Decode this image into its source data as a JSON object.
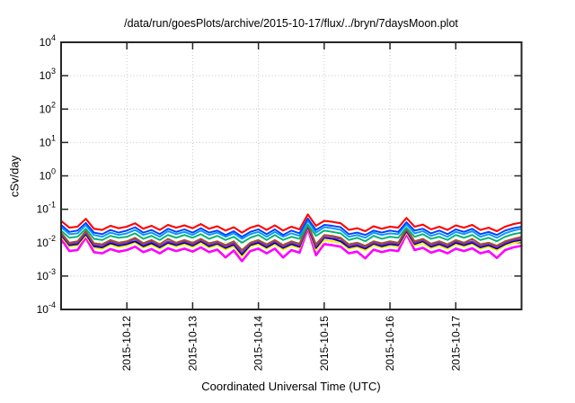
{
  "chart_data": {
    "type": "line",
    "title": "/data/run/goesPlots/archive/2015-10-17/flux/../bryn/7daysMoon.plot",
    "xlabel": "Coordinated Universal Time (UTC)",
    "ylabel": "cSv/day",
    "y_scale": "log10",
    "ylim": [
      0.0001,
      10000
    ],
    "ylim_exponents": [
      -4,
      4
    ],
    "y_tick_exponents": [
      4,
      3,
      2,
      1,
      0,
      -1,
      -2,
      -3,
      -4
    ],
    "x_range_days": [
      0,
      7
    ],
    "x_ticks": [
      {
        "label": "2015-10-12",
        "day": 1
      },
      {
        "label": "2015-10-13",
        "day": 2
      },
      {
        "label": "2015-10-14",
        "day": 3
      },
      {
        "label": "2015-10-15",
        "day": 4
      },
      {
        "label": "2015-10-16",
        "day": 5
      },
      {
        "label": "2015-10-17",
        "day": 6
      }
    ],
    "grid": {
      "style": "dotted",
      "color": "#c6c6c6"
    },
    "legend_position": "none",
    "border_color": "#262626",
    "x_days": [
      0,
      0.125,
      0.25,
      0.375,
      0.5,
      0.625,
      0.75,
      0.875,
      1,
      1.125,
      1.25,
      1.375,
      1.5,
      1.625,
      1.75,
      1.875,
      2,
      2.125,
      2.25,
      2.375,
      2.5,
      2.625,
      2.75,
      2.875,
      3,
      3.125,
      3.25,
      3.375,
      3.5,
      3.625,
      3.75,
      3.875,
      4,
      4.125,
      4.25,
      4.375,
      4.5,
      4.625,
      4.75,
      4.875,
      5,
      5.125,
      5.25,
      5.375,
      5.5,
      5.625,
      5.75,
      5.875,
      6,
      6.125,
      6.25,
      6.375,
      6.5,
      6.625,
      6.75,
      6.875,
      7
    ],
    "series": [
      {
        "name": "red",
        "color": "#ff0000",
        "width": 2.1,
        "values": [
          0.045,
          0.028,
          0.03,
          0.052,
          0.026,
          0.024,
          0.032,
          0.027,
          0.03,
          0.038,
          0.026,
          0.032,
          0.024,
          0.034,
          0.028,
          0.033,
          0.027,
          0.036,
          0.026,
          0.031,
          0.023,
          0.029,
          0.02,
          0.028,
          0.033,
          0.024,
          0.033,
          0.023,
          0.03,
          0.025,
          0.07,
          0.032,
          0.045,
          0.042,
          0.038,
          0.024,
          0.027,
          0.022,
          0.031,
          0.026,
          0.03,
          0.028,
          0.055,
          0.03,
          0.035,
          0.025,
          0.03,
          0.024,
          0.033,
          0.028,
          0.034,
          0.024,
          0.028,
          0.022,
          0.03,
          0.036,
          0.04
        ]
      },
      {
        "name": "blue",
        "color": "#0040ff",
        "width": 1.9,
        "values": [
          0.034,
          0.021,
          0.023,
          0.039,
          0.02,
          0.018,
          0.024,
          0.02,
          0.023,
          0.029,
          0.02,
          0.024,
          0.018,
          0.026,
          0.021,
          0.025,
          0.02,
          0.027,
          0.02,
          0.023,
          0.017,
          0.022,
          0.015,
          0.021,
          0.025,
          0.018,
          0.025,
          0.017,
          0.023,
          0.019,
          0.053,
          0.024,
          0.034,
          0.032,
          0.029,
          0.018,
          0.02,
          0.017,
          0.023,
          0.02,
          0.023,
          0.021,
          0.041,
          0.023,
          0.026,
          0.019,
          0.023,
          0.018,
          0.025,
          0.021,
          0.026,
          0.018,
          0.021,
          0.017,
          0.023,
          0.027,
          0.03
        ]
      },
      {
        "name": "light-blue",
        "color": "#0099ff",
        "width": 1.9,
        "values": [
          0.029,
          0.018,
          0.019,
          0.033,
          0.017,
          0.015,
          0.02,
          0.017,
          0.019,
          0.024,
          0.017,
          0.02,
          0.015,
          0.022,
          0.018,
          0.021,
          0.017,
          0.023,
          0.017,
          0.02,
          0.015,
          0.019,
          0.013,
          0.018,
          0.021,
          0.015,
          0.021,
          0.015,
          0.019,
          0.016,
          0.045,
          0.02,
          0.029,
          0.027,
          0.024,
          0.015,
          0.017,
          0.014,
          0.02,
          0.017,
          0.019,
          0.018,
          0.035,
          0.019,
          0.022,
          0.016,
          0.019,
          0.015,
          0.021,
          0.018,
          0.022,
          0.015,
          0.018,
          0.014,
          0.019,
          0.023,
          0.026
        ]
      },
      {
        "name": "sea-green",
        "color": "#00b273",
        "width": 1.9,
        "values": [
          0.023,
          0.014,
          0.015,
          0.026,
          0.013,
          0.012,
          0.016,
          0.014,
          0.015,
          0.019,
          0.013,
          0.016,
          0.012,
          0.017,
          0.014,
          0.017,
          0.014,
          0.018,
          0.013,
          0.016,
          0.012,
          0.015,
          0.01,
          0.014,
          0.017,
          0.012,
          0.017,
          0.012,
          0.015,
          0.013,
          0.035,
          0.016,
          0.023,
          0.021,
          0.019,
          0.012,
          0.014,
          0.011,
          0.016,
          0.013,
          0.015,
          0.014,
          0.028,
          0.015,
          0.018,
          0.013,
          0.015,
          0.012,
          0.017,
          0.014,
          0.017,
          0.012,
          0.014,
          0.011,
          0.015,
          0.018,
          0.02
        ]
      },
      {
        "name": "brown",
        "color": "#a0522d",
        "width": 1.9,
        "values": [
          0.02,
          0.01,
          0.011,
          0.022,
          0.0096,
          0.0089,
          0.012,
          0.01,
          0.011,
          0.014,
          0.0096,
          0.012,
          0.0089,
          0.013,
          0.01,
          0.012,
          0.01,
          0.013,
          0.0096,
          0.011,
          0.0085,
          0.011,
          0.006,
          0.01,
          0.012,
          0.0089,
          0.012,
          0.0085,
          0.011,
          0.0093,
          0.035,
          0.009,
          0.017,
          0.016,
          0.014,
          0.0089,
          0.01,
          0.0081,
          0.011,
          0.0096,
          0.011,
          0.01,
          0.026,
          0.011,
          0.013,
          0.0093,
          0.011,
          0.0089,
          0.012,
          0.01,
          0.013,
          0.0089,
          0.01,
          0.0081,
          0.011,
          0.013,
          0.015
        ]
      },
      {
        "name": "purple",
        "color": "#7d2fbd",
        "width": 1.9,
        "values": [
          0.018,
          0.0092,
          0.0099,
          0.02,
          0.0086,
          0.0079,
          0.011,
          0.0089,
          0.0099,
          0.013,
          0.0086,
          0.011,
          0.0079,
          0.011,
          0.0092,
          0.011,
          0.0089,
          0.012,
          0.0086,
          0.01,
          0.0076,
          0.0096,
          0.005,
          0.0092,
          0.011,
          0.0079,
          0.011,
          0.0076,
          0.0099,
          0.0083,
          0.032,
          0.0078,
          0.015,
          0.014,
          0.013,
          0.0079,
          0.0089,
          0.0073,
          0.01,
          0.0086,
          0.0099,
          0.0092,
          0.024,
          0.0099,
          0.012,
          0.0083,
          0.0099,
          0.0079,
          0.011,
          0.0092,
          0.011,
          0.0079,
          0.0092,
          0.0073,
          0.0099,
          0.012,
          0.013
        ]
      },
      {
        "name": "navy",
        "color": "#0000a0",
        "width": 1.9,
        "values": [
          0.017,
          0.0084,
          0.009,
          0.018,
          0.0078,
          0.0072,
          0.0096,
          0.0081,
          0.009,
          0.011,
          0.0078,
          0.0096,
          0.0072,
          0.01,
          0.0084,
          0.0099,
          0.0081,
          0.011,
          0.0078,
          0.0093,
          0.0069,
          0.0087,
          0.0044,
          0.0084,
          0.0099,
          0.0072,
          0.0099,
          0.0069,
          0.009,
          0.0075,
          0.03,
          0.0069,
          0.014,
          0.013,
          0.011,
          0.0072,
          0.0081,
          0.0066,
          0.0093,
          0.0078,
          0.009,
          0.0084,
          0.022,
          0.009,
          0.011,
          0.0075,
          0.009,
          0.0072,
          0.0099,
          0.0084,
          0.01,
          0.0072,
          0.0084,
          0.0066,
          0.009,
          0.011,
          0.012
        ]
      },
      {
        "name": "yellow",
        "color": "#ffee00",
        "width": 1.9,
        "values": [
          0.015,
          0.0076,
          0.0081,
          0.016,
          0.007,
          0.0065,
          0.0086,
          0.0073,
          0.0081,
          0.01,
          0.007,
          0.0086,
          0.0065,
          0.0092,
          0.0076,
          0.0089,
          0.0073,
          0.0097,
          0.007,
          0.0084,
          0.0062,
          0.0078,
          0.0038,
          0.0076,
          0.0089,
          0.0065,
          0.0089,
          0.0062,
          0.0081,
          0.0068,
          0.028,
          0.006,
          0.012,
          0.011,
          0.01,
          0.0065,
          0.0073,
          0.0059,
          0.0084,
          0.007,
          0.0081,
          0.0076,
          0.02,
          0.0081,
          0.0095,
          0.0068,
          0.0081,
          0.0065,
          0.0089,
          0.0076,
          0.0092,
          0.0065,
          0.0076,
          0.0059,
          0.0081,
          0.0097,
          0.011
        ]
      },
      {
        "name": "magenta",
        "color": "#ff00ff",
        "width": 2.6,
        "values": [
          0.013,
          0.0056,
          0.006,
          0.014,
          0.0052,
          0.0048,
          0.0064,
          0.0054,
          0.006,
          0.0076,
          0.0052,
          0.0064,
          0.0048,
          0.0068,
          0.0056,
          0.0066,
          0.0054,
          0.0072,
          0.0052,
          0.0062,
          0.0036,
          0.0058,
          0.0028,
          0.0056,
          0.0066,
          0.0048,
          0.0066,
          0.0036,
          0.006,
          0.005,
          0.026,
          0.0042,
          0.009,
          0.0084,
          0.0076,
          0.0048,
          0.0054,
          0.0034,
          0.0062,
          0.0052,
          0.006,
          0.0056,
          0.018,
          0.006,
          0.007,
          0.005,
          0.006,
          0.0048,
          0.0066,
          0.0056,
          0.0068,
          0.0048,
          0.0056,
          0.0035,
          0.006,
          0.0072,
          0.008
        ]
      }
    ]
  }
}
